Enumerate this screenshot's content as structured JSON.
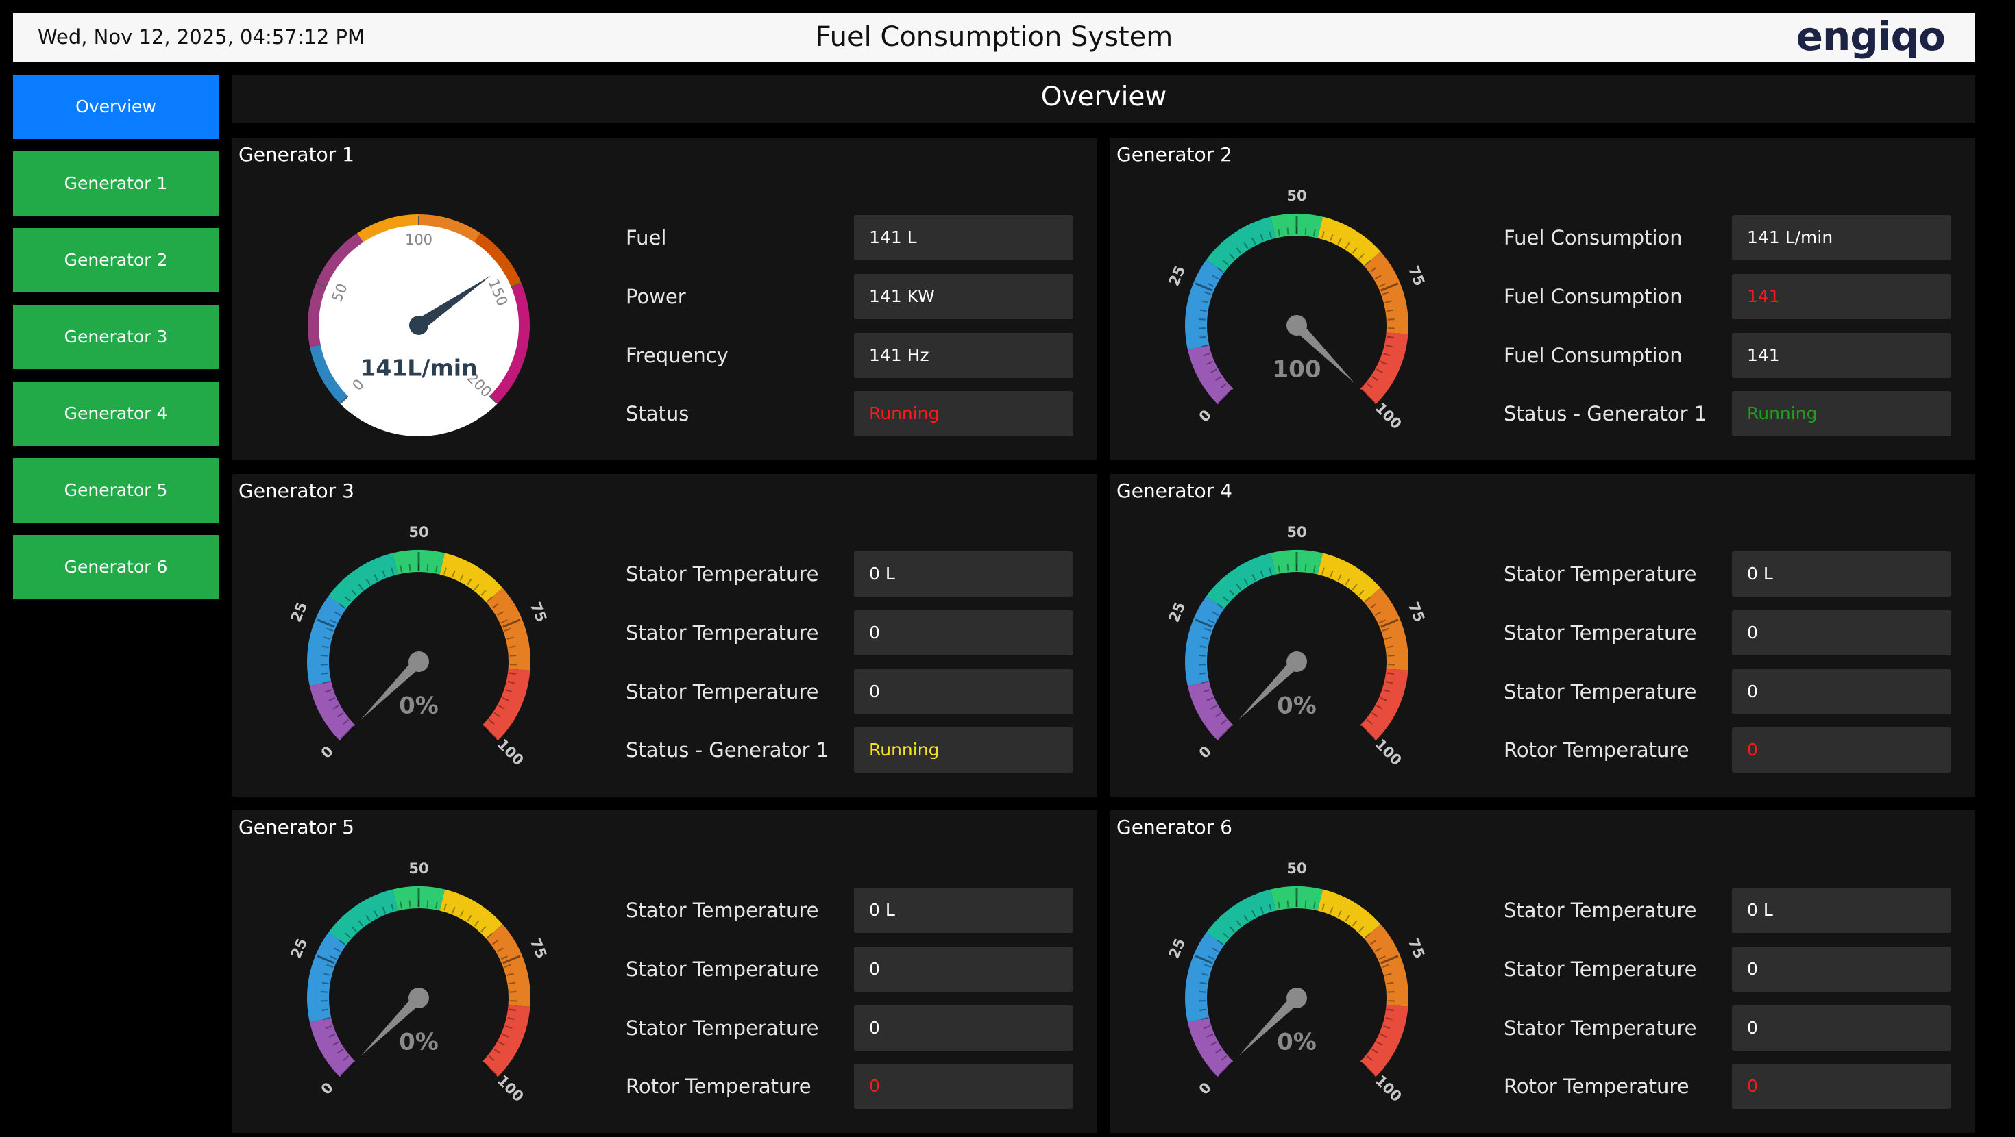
{
  "header": {
    "datetime": "Wed, Nov 12, 2025, 04:57:12 PM",
    "title": "Fuel Consumption System",
    "logo": "engiqo"
  },
  "nav": [
    {
      "label": "Overview",
      "color": "#0a7cff"
    },
    {
      "label": "Generator 1",
      "color": "#22aa48"
    },
    {
      "label": "Generator 2",
      "color": "#22aa48"
    },
    {
      "label": "Generator 3",
      "color": "#22aa48"
    },
    {
      "label": "Generator 4",
      "color": "#22aa48"
    },
    {
      "label": "Generator 5",
      "color": "#22aa48"
    },
    {
      "label": "Generator 6",
      "color": "#22aa48"
    }
  ],
  "page_title": "Overview",
  "panels": [
    {
      "title": "Generator 1",
      "gauge": {
        "style": "dial",
        "range": [
          0,
          200
        ],
        "ticks": [
          0,
          50,
          100,
          150,
          200
        ],
        "value": 141,
        "value_label": "141L/min"
      },
      "fields": [
        {
          "label": "Fuel",
          "value": "141 L",
          "color": "#ffffff"
        },
        {
          "label": "Power",
          "value": "141 KW",
          "color": "#ffffff"
        },
        {
          "label": "Frequency",
          "value": "141 Hz",
          "color": "#ffffff"
        },
        {
          "label": "Status",
          "value": "Running",
          "color": "#ff1a1a"
        }
      ]
    },
    {
      "title": "Generator 2",
      "gauge": {
        "style": "arc",
        "range": [
          0,
          100
        ],
        "ticks": [
          0,
          25,
          50,
          75,
          100
        ],
        "value": 100,
        "value_label": "100"
      },
      "fields": [
        {
          "label": "Fuel Consumption",
          "value": "141 L/min",
          "color": "#ffffff"
        },
        {
          "label": "Fuel Consumption",
          "value": "141",
          "color": "#ff1a1a"
        },
        {
          "label": "Fuel Consumption",
          "value": "141",
          "color": "#ffffff"
        },
        {
          "label": "Status - Generator 1",
          "value": "Running",
          "color": "#1f9e1f"
        }
      ]
    },
    {
      "title": "Generator 3",
      "gauge": {
        "style": "arc",
        "range": [
          0,
          100
        ],
        "ticks": [
          0,
          25,
          50,
          75,
          100
        ],
        "value": 0,
        "value_label": "0%"
      },
      "fields": [
        {
          "label": "Stator Temperature",
          "value": "0 L",
          "color": "#ffffff"
        },
        {
          "label": "Stator Temperature",
          "value": "0",
          "color": "#ffffff"
        },
        {
          "label": "Stator Temperature",
          "value": "0",
          "color": "#ffffff"
        },
        {
          "label": "Status - Generator 1",
          "value": "Running",
          "color": "#f5e31a"
        }
      ]
    },
    {
      "title": "Generator 4",
      "gauge": {
        "style": "arc",
        "range": [
          0,
          100
        ],
        "ticks": [
          0,
          25,
          50,
          75,
          100
        ],
        "value": 0,
        "value_label": "0%"
      },
      "fields": [
        {
          "label": "Stator Temperature",
          "value": "0 L",
          "color": "#ffffff"
        },
        {
          "label": "Stator Temperature",
          "value": "0",
          "color": "#ffffff"
        },
        {
          "label": "Stator Temperature",
          "value": "0",
          "color": "#ffffff"
        },
        {
          "label": "Rotor Temperature",
          "value": "0",
          "color": "#ff1a1a"
        }
      ]
    },
    {
      "title": "Generator 5",
      "gauge": {
        "style": "arc",
        "range": [
          0,
          100
        ],
        "ticks": [
          0,
          25,
          50,
          75,
          100
        ],
        "value": 0,
        "value_label": "0%"
      },
      "fields": [
        {
          "label": "Stator Temperature",
          "value": "0 L",
          "color": "#ffffff"
        },
        {
          "label": "Stator Temperature",
          "value": "0",
          "color": "#ffffff"
        },
        {
          "label": "Stator Temperature",
          "value": "0",
          "color": "#ffffff"
        },
        {
          "label": "Rotor Temperature",
          "value": "0",
          "color": "#ff1a1a"
        }
      ]
    },
    {
      "title": "Generator 6",
      "gauge": {
        "style": "arc",
        "range": [
          0,
          100
        ],
        "ticks": [
          0,
          25,
          50,
          75,
          100
        ],
        "value": 0,
        "value_label": "0%"
      },
      "fields": [
        {
          "label": "Stator Temperature",
          "value": "0 L",
          "color": "#ffffff"
        },
        {
          "label": "Stator Temperature",
          "value": "0",
          "color": "#ffffff"
        },
        {
          "label": "Stator Temperature",
          "value": "0",
          "color": "#ffffff"
        },
        {
          "label": "Rotor Temperature",
          "value": "0",
          "color": "#ff1a1a"
        }
      ]
    }
  ]
}
